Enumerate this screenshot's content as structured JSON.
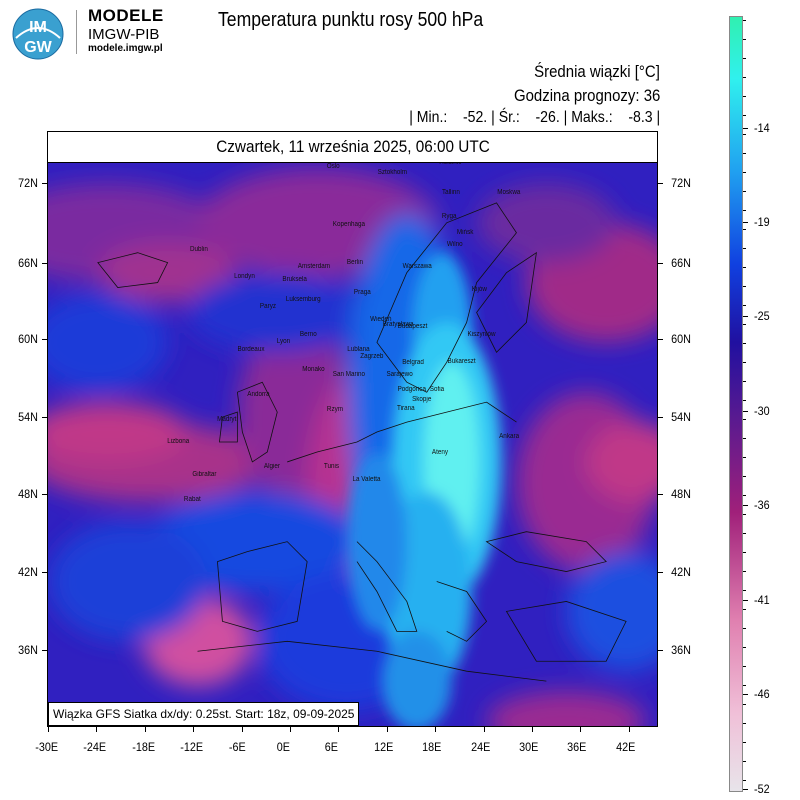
{
  "logo": {
    "badge_top": "IM",
    "badge_bottom": "GW",
    "title": "MODELE",
    "subtitle": "IMGW-PIB",
    "url": "modele.imgw.pl"
  },
  "header": {
    "title": "Temperatura punktu rosy 500 hPa",
    "average_label": "Średnia wiązki [°C]",
    "forecast_hour_label": "Godzina prognozy: 36",
    "stats_line": "| Min.:    -52. | Śr.:    -26. | Maks.:    -8.3 |"
  },
  "map": {
    "date_title": "Czwartek, 11 września 2025, 06:00 UTC",
    "footer_note": "Wiązka GFS Siatka dx/dy: 0.25st. Start: 18z, 09-09-2025",
    "lat_labels": [
      "72N",
      "66N",
      "60N",
      "54N",
      "48N",
      "42N",
      "36N"
    ],
    "lon_labels": [
      "-30E",
      "-24E",
      "-18E",
      "-12E",
      "-6E",
      "0E",
      "6E",
      "12E",
      "18E",
      "24E",
      "30E",
      "36E",
      "42E"
    ],
    "cities": [
      "Oslo",
      "Sztokholm",
      "Helsinki",
      "Moskwa",
      "Kopenhaga",
      "Mińsk",
      "Berlin",
      "Amsterdam",
      "Bruksela",
      "Londyn",
      "Dublin",
      "Paryż",
      "Luksemburg",
      "Praga",
      "Warszawa",
      "Kijów",
      "Wiedeń",
      "Bratysława",
      "Budapeszt",
      "Kiszyniów",
      "Berno",
      "Lublana",
      "Zagrzeb",
      "Belgrad",
      "Bukareszt",
      "San Marino",
      "Sarajewo",
      "Podgorica",
      "Sofia",
      "Skopje",
      "Tirana",
      "Rzym",
      "Madryt",
      "Andorra",
      "Lizbona",
      "Gibraltar",
      "Rabat",
      "Algier",
      "Tunis",
      "La Valetta",
      "Ateny",
      "Ankara",
      "Wilno",
      "Ryga",
      "Tallinn",
      "Monako",
      "Bordeaux",
      "Lyon"
    ],
    "colors": {
      "lightest": "#e8e4ea",
      "pink": "#e080b0",
      "magenta": "#a0207a",
      "purple": "#5a1a90",
      "dark_blue": "#2010a0",
      "blue": "#1040e0",
      "light_blue": "#20a0f0",
      "cyan": "#30f0ee"
    }
  },
  "colorbar": {
    "labels": [
      "-14",
      "-19",
      "-25",
      "-30",
      "-36",
      "-41",
      "-46",
      "-52"
    ],
    "min": -52,
    "max": -8.3
  }
}
